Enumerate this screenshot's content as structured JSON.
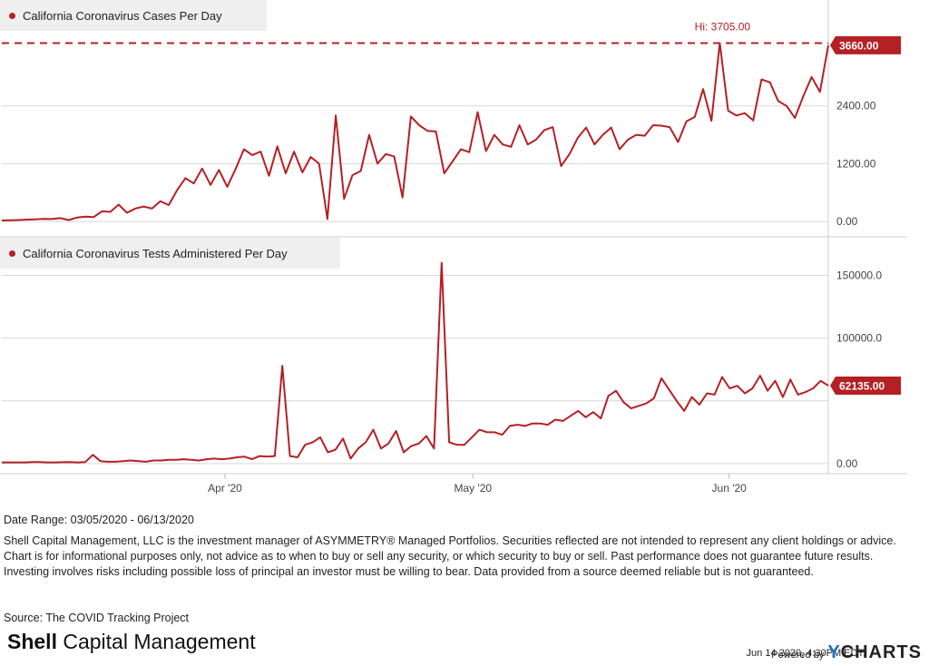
{
  "colors": {
    "series": "#b52025",
    "grid": "#d8d8d8",
    "legend_bg": "#efefef",
    "brand_blue": "#1a73c9"
  },
  "chart_data": [
    {
      "type": "line",
      "title": "California Coronavirus Cases Per Day",
      "x_range": [
        "2020-03-05",
        "2020-06-13"
      ],
      "ylim": [
        -300,
        4600
      ],
      "y_ticks": [
        0,
        1200,
        2400
      ],
      "y_tick_labels": [
        "0.00",
        "1200.00",
        "2400.00"
      ],
      "high_label": "Hi: 3705.00",
      "high_value": 3705,
      "last_label": "3660.00",
      "series": [
        {
          "values": [
            20,
            25,
            30,
            40,
            45,
            55,
            50,
            70,
            30,
            80,
            100,
            90,
            210,
            200,
            350,
            180,
            270,
            310,
            270,
            420,
            340,
            650,
            900,
            790,
            1100,
            760,
            1070,
            720,
            1090,
            1500,
            1380,
            1450,
            950,
            1560,
            1000,
            1450,
            1020,
            1340,
            1200,
            50,
            2200,
            470,
            960,
            1050,
            1800,
            1200,
            1400,
            1350,
            500,
            2180,
            2000,
            1880,
            1870,
            1000,
            1250,
            1500,
            1440,
            2270,
            1460,
            1800,
            1600,
            1550,
            2000,
            1600,
            1700,
            1900,
            1960,
            1150,
            1400,
            1740,
            1950,
            1600,
            1800,
            1950,
            1500,
            1700,
            1800,
            1780,
            2000,
            1990,
            1960,
            1650,
            2080,
            2170,
            2750,
            2090,
            3705,
            2300,
            2200,
            2250,
            2100,
            2950,
            2890,
            2500,
            2400,
            2150,
            2600,
            3000,
            2690,
            3660
          ]
        }
      ]
    },
    {
      "type": "line",
      "title": "California Coronavirus Tests Administered Per Day",
      "x_range": [
        "2020-03-05",
        "2020-06-13"
      ],
      "x_tick_labels": [
        "Apr '20",
        "May '20",
        "Jun '20"
      ],
      "ylim": [
        -8000,
        180000
      ],
      "y_ticks": [
        0,
        50000,
        100000,
        150000
      ],
      "y_tick_labels": [
        "0.00",
        "",
        "100000.0",
        "150000.0"
      ],
      "last_label": "62135.00",
      "series": [
        {
          "values": [
            1000,
            1000,
            1000,
            1000,
            1200,
            1200,
            1000,
            1000,
            1100,
            1200,
            1000,
            1200,
            7000,
            2000,
            1500,
            1500,
            2000,
            2500,
            2000,
            1500,
            2500,
            2500,
            3000,
            3000,
            3500,
            3000,
            2500,
            3500,
            4000,
            3500,
            4000,
            5000,
            5500,
            3500,
            6000,
            5500,
            6000,
            78000,
            6000,
            5000,
            15000,
            17000,
            21000,
            9000,
            11000,
            20000,
            4000,
            12000,
            17000,
            27000,
            12000,
            16000,
            26000,
            9000,
            14000,
            16000,
            22000,
            12000,
            160000,
            17000,
            15000,
            15000,
            21000,
            27000,
            25000,
            25000,
            23000,
            30000,
            31000,
            30000,
            32000,
            32000,
            31000,
            35000,
            34000,
            38000,
            42000,
            37000,
            41000,
            36000,
            54000,
            58000,
            49000,
            44000,
            46000,
            48000,
            52000,
            68000,
            59000,
            50000,
            42000,
            53000,
            47000,
            56000,
            55000,
            69000,
            60000,
            62000,
            56000,
            60000,
            70000,
            58000,
            66000,
            53000,
            67000,
            55000,
            57000,
            60000,
            66000,
            62135
          ]
        }
      ]
    }
  ],
  "footer": {
    "date_range": "Date Range: 03/05/2020 - 06/13/2020",
    "disclaimer": "Shell Capital Management, LLC is the investment manager of ASYMMETRY® Managed Portfolios. Securities reflected are not intended to represent any client holdings or advice. Chart is for informational purposes only, not advice as to when to buy or sell any security, or which security to buy or sell. Past performance does not guarantee future results. Investing involves risks including possible loss of principal an investor must be willing to bear. Data provided from a source deemed reliable but is not guaranteed.",
    "source": "Source: The COVID Tracking Project",
    "brand_bold": "Shell",
    "brand_rest": " Capital Management",
    "timestamp": "Jun 14 2020, 4:30PM EDT.",
    "powered_by": "Powered by",
    "ycharts_y": "Y",
    "ycharts_rest": "CHARTS"
  }
}
